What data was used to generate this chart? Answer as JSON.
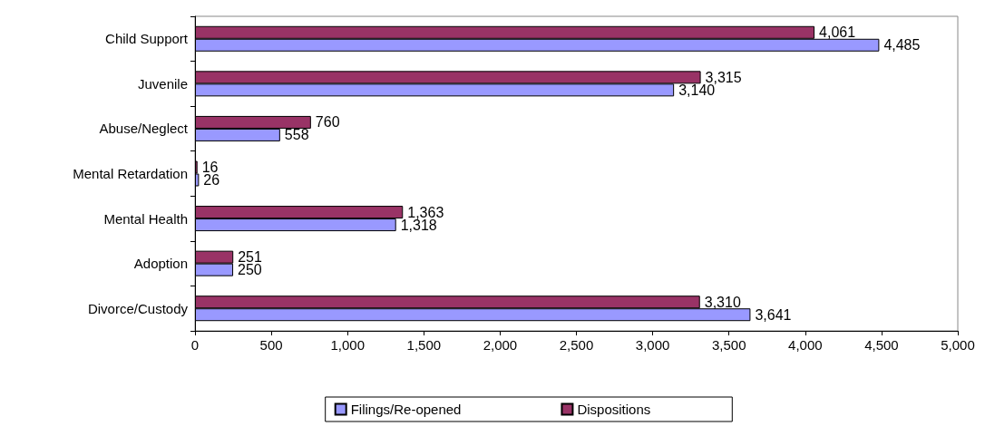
{
  "chart_data": {
    "type": "bar",
    "orientation": "horizontal",
    "categories": [
      "Child Support",
      "Juvenile",
      "Abuse/Neglect",
      "Mental Retardation",
      "Mental Health",
      "Adoption",
      "Divorce/Custody"
    ],
    "series": [
      {
        "name": "Filings/Re-opened",
        "color": "#9999ff",
        "values": [
          4485,
          3140,
          558,
          26,
          1318,
          250,
          3641
        ],
        "value_labels": [
          "4,485",
          "3,140",
          "558",
          "26",
          "1,318",
          "250",
          "3,641"
        ]
      },
      {
        "name": "Dispositions",
        "color": "#993366",
        "values": [
          4061,
          3315,
          760,
          16,
          1363,
          251,
          3310
        ],
        "value_labels": [
          "4,061",
          "3,315",
          "760",
          "16",
          "1,363",
          "251",
          "3,310"
        ]
      }
    ],
    "xlim": [
      0,
      5000
    ],
    "xticks": [
      0,
      500,
      {
        "value": 1000,
        "label": "1,000"
      },
      {
        "value": 1500,
        "label": "1,500"
      },
      {
        "value": 2000,
        "label": "2,000"
      },
      {
        "value": 2500,
        "label": "2,500"
      },
      {
        "value": 3000,
        "label": "3,000"
      },
      {
        "value": 3500,
        "label": "3,500"
      },
      {
        "value": 4000,
        "label": "4,000"
      },
      {
        "value": 4500,
        "label": "4,500"
      },
      {
        "value": 5000,
        "label": "5,000"
      }
    ],
    "grid": false,
    "legend": "bottom"
  }
}
